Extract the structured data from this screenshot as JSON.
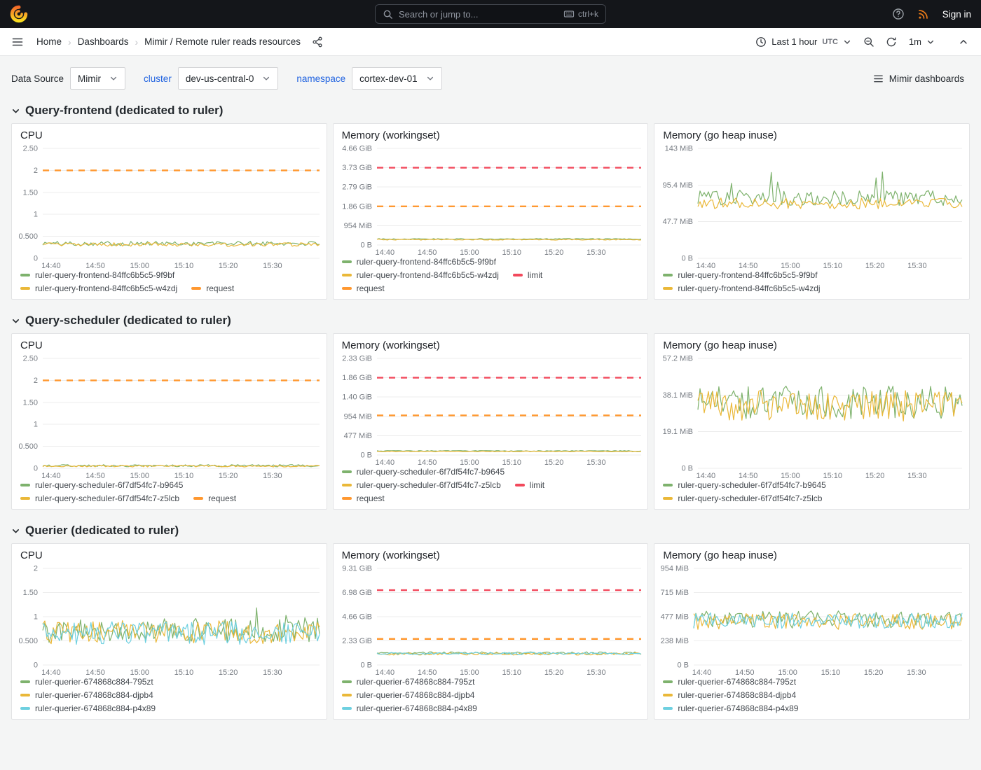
{
  "topbar": {
    "search_placeholder": "Search or jump to...",
    "search_shortcut": "ctrl+k",
    "sign_in": "Sign in"
  },
  "breadcrumb": {
    "items": [
      "Home",
      "Dashboards",
      "Mimir / Remote ruler reads resources"
    ],
    "separator": "›",
    "time_range_label": "Last 1 hour",
    "time_zone": "UTC",
    "refresh_interval": "1m"
  },
  "filters": {
    "datasource_label": "Data Source",
    "datasource_value": "Mimir",
    "cluster_label": "cluster",
    "cluster_value": "dev-us-central-0",
    "namespace_label": "namespace",
    "namespace_value": "cortex-dev-01",
    "dashboards_button": "Mimir dashboards"
  },
  "colors": {
    "brand_orange": "#F15B2A",
    "link_blue": "#1F62E0",
    "limit_red": "#F2495C",
    "request_orange": "#FF9830",
    "series_green": "#7EB26D",
    "series_yellow": "#EAB839",
    "series_cyan": "#6ED0E0",
    "topbar_bg": "#14161A",
    "page_bg": "#F4F5F5"
  },
  "icons": {
    "grafana-logo": "orange-swirl",
    "search": "magnifier",
    "keyboard": "keyboard",
    "help": "question-circle",
    "news": "rss",
    "menu": "hamburger",
    "share": "share-nodes",
    "clock": "clock",
    "zoom-out": "magnifier-minus",
    "refresh": "circular-arrow",
    "caret": "chevron-down",
    "collapse": "chevron-up",
    "dashboards": "list-bars",
    "section-toggle": "chevron-down"
  },
  "sections": [
    {
      "title": "Query-frontend (dedicated to ruler)",
      "panels": [
        {
          "title": "CPU",
          "y_ticks": [
            "2.50",
            "2",
            "1.50",
            "1",
            "0.500",
            "0"
          ],
          "x_ticks": [
            "14:40",
            "14:50",
            "15:00",
            "15:10",
            "15:20",
            "15:30"
          ],
          "series": [
            {
              "label": "request",
              "color": "#FF9830",
              "style": "dash",
              "level": 0.8
            },
            {
              "label": "ruler-query-frontend-84ffc6b5c5-9f9bf",
              "color": "#7EB26D",
              "style": "line",
              "level": 0.135,
              "amp": 0.02,
              "seed": 101
            },
            {
              "label": "ruler-query-frontend-84ffc6b5c5-w4zdj",
              "color": "#EAB839",
              "style": "line",
              "level": 0.125,
              "amp": 0.017,
              "seed": 102
            }
          ],
          "legend_rows": [
            [
              {
                "label": "ruler-query-frontend-84ffc6b5c5-9f9bf",
                "color": "#7EB26D"
              }
            ],
            [
              {
                "label": "ruler-query-frontend-84ffc6b5c5-w4zdj",
                "color": "#EAB839"
              },
              {
                "label": "request",
                "color": "#FF9830"
              }
            ]
          ]
        },
        {
          "title": "Memory (workingset)",
          "y_ticks": [
            "4.66 GiB",
            "3.73 GiB",
            "2.79 GiB",
            "1.86 GiB",
            "954 MiB",
            "0 B"
          ],
          "x_ticks": [
            "14:40",
            "14:50",
            "15:00",
            "15:10",
            "15:20",
            "15:30"
          ],
          "series": [
            {
              "label": "limit",
              "color": "#F2495C",
              "style": "dash",
              "level": 0.8
            },
            {
              "label": "request",
              "color": "#FF9830",
              "style": "dash",
              "level": 0.4
            },
            {
              "label": "ruler-query-frontend-84ffc6b5c5-9f9bf",
              "color": "#7EB26D",
              "style": "line",
              "level": 0.062,
              "amp": 0.005,
              "seed": 103
            },
            {
              "label": "ruler-query-frontend-84ffc6b5c5-w4zdj",
              "color": "#EAB839",
              "style": "line",
              "level": 0.056,
              "amp": 0.005,
              "seed": 104
            }
          ],
          "legend_rows": [
            [
              {
                "label": "ruler-query-frontend-84ffc6b5c5-9f9bf",
                "color": "#7EB26D"
              }
            ],
            [
              {
                "label": "ruler-query-frontend-84ffc6b5c5-w4zdj",
                "color": "#EAB839"
              },
              {
                "label": "limit",
                "color": "#F2495C"
              }
            ],
            [
              {
                "label": "request",
                "color": "#FF9830"
              }
            ]
          ]
        },
        {
          "title": "Memory (go heap inuse)",
          "y_ticks": [
            "143 MiB",
            "95.4 MiB",
            "47.7 MiB",
            "0 B"
          ],
          "x_ticks": [
            "14:40",
            "14:50",
            "15:00",
            "15:10",
            "15:20",
            "15:30"
          ],
          "series": [
            {
              "label": "ruler-query-frontend-84ffc6b5c5-9f9bf",
              "color": "#7EB26D",
              "style": "line",
              "level": 0.55,
              "amp": 0.07,
              "seed": 105,
              "spike_p": 0.07,
              "spike_amp": 0.3
            },
            {
              "label": "ruler-query-frontend-84ffc6b5c5-w4zdj",
              "color": "#EAB839",
              "style": "line",
              "level": 0.5,
              "amp": 0.05,
              "seed": 106
            }
          ],
          "legend_rows": [
            [
              {
                "label": "ruler-query-frontend-84ffc6b5c5-9f9bf",
                "color": "#7EB26D"
              }
            ],
            [
              {
                "label": "ruler-query-frontend-84ffc6b5c5-w4zdj",
                "color": "#EAB839"
              }
            ]
          ]
        }
      ]
    },
    {
      "title": "Query-scheduler (dedicated to ruler)",
      "panels": [
        {
          "title": "CPU",
          "y_ticks": [
            "2.50",
            "2",
            "1.50",
            "1",
            "0.500",
            "0"
          ],
          "x_ticks": [
            "14:40",
            "14:50",
            "15:00",
            "15:10",
            "15:20",
            "15:30"
          ],
          "series": [
            {
              "label": "request",
              "color": "#FF9830",
              "style": "dash",
              "level": 0.8
            },
            {
              "label": "ruler-query-scheduler-6f7df54fc7-b9645",
              "color": "#7EB26D",
              "style": "line",
              "level": 0.024,
              "amp": 0.01,
              "seed": 201
            },
            {
              "label": "ruler-query-scheduler-6f7df54fc7-z5lcb",
              "color": "#EAB839",
              "style": "line",
              "level": 0.02,
              "amp": 0.008,
              "seed": 202
            }
          ],
          "legend_rows": [
            [
              {
                "label": "ruler-query-scheduler-6f7df54fc7-b9645",
                "color": "#7EB26D"
              }
            ],
            [
              {
                "label": "ruler-query-scheduler-6f7df54fc7-z5lcb",
                "color": "#EAB839"
              },
              {
                "label": "request",
                "color": "#FF9830"
              }
            ]
          ]
        },
        {
          "title": "Memory (workingset)",
          "y_ticks": [
            "2.33 GiB",
            "1.86 GiB",
            "1.40 GiB",
            "954 MiB",
            "477 MiB",
            "0 B"
          ],
          "x_ticks": [
            "14:40",
            "14:50",
            "15:00",
            "15:10",
            "15:20",
            "15:30"
          ],
          "series": [
            {
              "label": "limit",
              "color": "#F2495C",
              "style": "dash",
              "level": 0.8
            },
            {
              "label": "request",
              "color": "#FF9830",
              "style": "dash",
              "level": 0.41
            },
            {
              "label": "ruler-query-scheduler-6f7df54fc7-b9645",
              "color": "#7EB26D",
              "style": "line",
              "level": 0.042,
              "amp": 0.004,
              "seed": 203
            },
            {
              "label": "ruler-query-scheduler-6f7df54fc7-z5lcb",
              "color": "#EAB839",
              "style": "line",
              "level": 0.037,
              "amp": 0.004,
              "seed": 204
            }
          ],
          "legend_rows": [
            [
              {
                "label": "ruler-query-scheduler-6f7df54fc7-b9645",
                "color": "#7EB26D"
              }
            ],
            [
              {
                "label": "ruler-query-scheduler-6f7df54fc7-z5lcb",
                "color": "#EAB839"
              },
              {
                "label": "limit",
                "color": "#F2495C"
              }
            ],
            [
              {
                "label": "request",
                "color": "#FF9830"
              }
            ]
          ]
        },
        {
          "title": "Memory (go heap inuse)",
          "y_ticks": [
            "57.2 MiB",
            "38.1 MiB",
            "19.1 MiB",
            "0 B"
          ],
          "x_ticks": [
            "14:40",
            "14:50",
            "15:00",
            "15:10",
            "15:20",
            "15:30"
          ],
          "series": [
            {
              "label": "ruler-query-scheduler-6f7df54fc7-b9645",
              "color": "#7EB26D",
              "style": "line",
              "level": 0.6,
              "amp": 0.15,
              "seed": 205
            },
            {
              "label": "ruler-query-scheduler-6f7df54fc7-z5lcb",
              "color": "#EAB839",
              "style": "line",
              "level": 0.57,
              "amp": 0.14,
              "seed": 206
            }
          ],
          "legend_rows": [
            [
              {
                "label": "ruler-query-scheduler-6f7df54fc7-b9645",
                "color": "#7EB26D"
              }
            ],
            [
              {
                "label": "ruler-query-scheduler-6f7df54fc7-z5lcb",
                "color": "#EAB839"
              }
            ]
          ]
        }
      ]
    },
    {
      "title": "Querier (dedicated to ruler)",
      "panels": [
        {
          "title": "CPU",
          "y_ticks": [
            "2",
            "1.50",
            "1",
            "0.500",
            "0"
          ],
          "x_ticks": [
            "14:40",
            "14:50",
            "15:00",
            "15:10",
            "15:20",
            "15:30"
          ],
          "series": [
            {
              "label": "ruler-querier-674868c884-795zt",
              "color": "#7EB26D",
              "style": "line",
              "level": 0.36,
              "amp": 0.13,
              "seed": 301,
              "spike_p": 0.05,
              "spike_amp": 0.12
            },
            {
              "label": "ruler-querier-674868c884-djpb4",
              "color": "#EAB839",
              "style": "line",
              "level": 0.34,
              "amp": 0.12,
              "seed": 302
            },
            {
              "label": "ruler-querier-674868c884-p4x89",
              "color": "#6ED0E0",
              "style": "line",
              "level": 0.33,
              "amp": 0.12,
              "seed": 303
            }
          ],
          "legend_rows": [
            [
              {
                "label": "ruler-querier-674868c884-795zt",
                "color": "#7EB26D"
              }
            ],
            [
              {
                "label": "ruler-querier-674868c884-djpb4",
                "color": "#EAB839"
              }
            ],
            [
              {
                "label": "ruler-querier-674868c884-p4x89",
                "color": "#6ED0E0"
              }
            ]
          ]
        },
        {
          "title": "Memory (workingset)",
          "y_ticks": [
            "9.31 GiB",
            "6.98 GiB",
            "4.66 GiB",
            "2.33 GiB",
            "0 B"
          ],
          "x_ticks": [
            "14:40",
            "14:50",
            "15:00",
            "15:10",
            "15:20",
            "15:30"
          ],
          "series": [
            {
              "label": "limit",
              "color": "#F2495C",
              "style": "dash",
              "level": 0.775
            },
            {
              "label": "request",
              "color": "#FF9830",
              "style": "dash",
              "level": 0.27
            },
            {
              "label": "ruler-querier-674868c884-795zt",
              "color": "#7EB26D",
              "style": "line",
              "level": 0.125,
              "amp": 0.012,
              "seed": 304
            },
            {
              "label": "ruler-querier-674868c884-djpb4",
              "color": "#EAB839",
              "style": "line",
              "level": 0.115,
              "amp": 0.012,
              "seed": 305
            },
            {
              "label": "ruler-querier-674868c884-p4x89",
              "color": "#6ED0E0",
              "style": "line",
              "level": 0.12,
              "amp": 0.012,
              "seed": 306
            }
          ],
          "legend_rows": [
            [
              {
                "label": "ruler-querier-674868c884-795zt",
                "color": "#7EB26D"
              }
            ],
            [
              {
                "label": "ruler-querier-674868c884-djpb4",
                "color": "#EAB839"
              }
            ],
            [
              {
                "label": "ruler-querier-674868c884-p4x89",
                "color": "#6ED0E0"
              }
            ]
          ]
        },
        {
          "title": "Memory (go heap inuse)",
          "y_ticks": [
            "954 MiB",
            "715 MiB",
            "477 MiB",
            "238 MiB",
            "0 B"
          ],
          "x_ticks": [
            "14:40",
            "14:50",
            "15:00",
            "15:10",
            "15:20",
            "15:30"
          ],
          "series": [
            {
              "label": "ruler-querier-674868c884-795zt",
              "color": "#7EB26D",
              "style": "line",
              "level": 0.47,
              "amp": 0.09,
              "seed": 307
            },
            {
              "label": "ruler-querier-674868c884-djpb4",
              "color": "#EAB839",
              "style": "line",
              "level": 0.45,
              "amp": 0.085,
              "seed": 308
            },
            {
              "label": "ruler-querier-674868c884-p4x89",
              "color": "#6ED0E0",
              "style": "line",
              "level": 0.46,
              "amp": 0.08,
              "seed": 309
            }
          ],
          "legend_rows": [
            [
              {
                "label": "ruler-querier-674868c884-795zt",
                "color": "#7EB26D"
              }
            ],
            [
              {
                "label": "ruler-querier-674868c884-djpb4",
                "color": "#EAB839"
              }
            ],
            [
              {
                "label": "ruler-querier-674868c884-p4x89",
                "color": "#6ED0E0"
              }
            ]
          ]
        }
      ]
    }
  ]
}
